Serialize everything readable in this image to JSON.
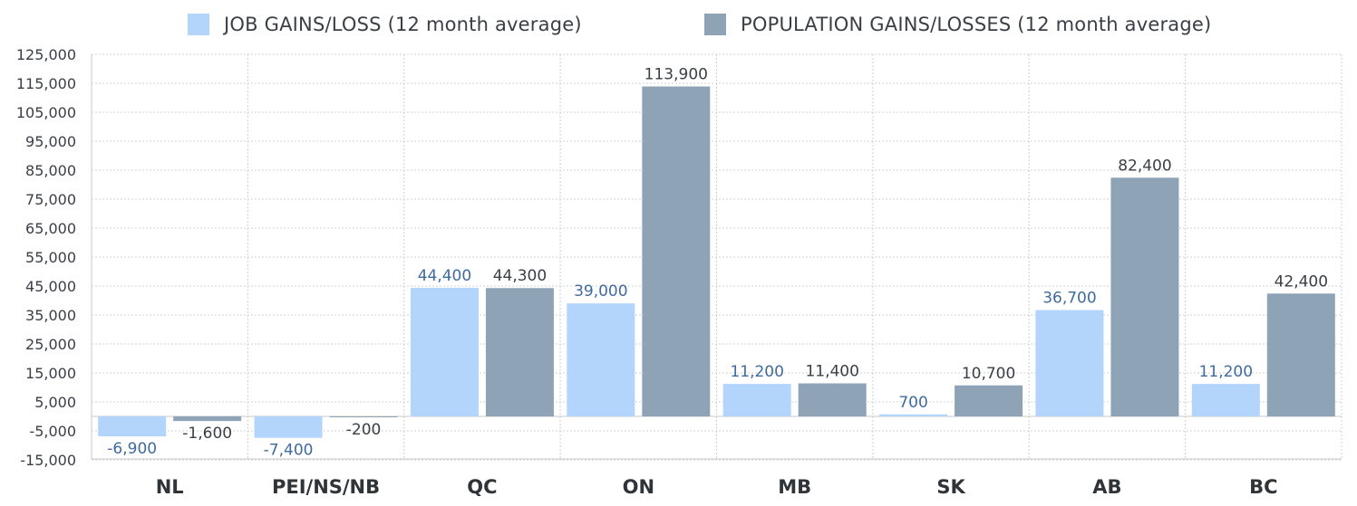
{
  "chart_data": {
    "type": "bar",
    "categories": [
      "NL",
      "PEI/NS/NB",
      "QC",
      "ON",
      "MB",
      "SK",
      "AB",
      "BC"
    ],
    "series": [
      {
        "name": "JOB GAINS/LOSS (12 month average)",
        "color": "#b3d4fb",
        "label_color": "#3f6b9e",
        "values": [
          -6900,
          -7400,
          44400,
          39000,
          11200,
          700,
          36700,
          11200
        ],
        "labels": [
          "-6,900",
          "-7,400",
          "44,400",
          "39,000",
          "11,200",
          "700",
          "36,700",
          "11,200"
        ]
      },
      {
        "name": "POPULATION GAINS/LOSSES (12 month average)",
        "color": "#8ea3b6",
        "label_color": "#3a3f45",
        "values": [
          -1600,
          -200,
          44300,
          113900,
          11400,
          10700,
          82400,
          42400
        ],
        "labels": [
          "-1,600",
          "-200",
          "44,300",
          "113,900",
          "11,400",
          "10,700",
          "82,400",
          "42,400"
        ]
      }
    ],
    "yticks": [
      125000,
      115000,
      105000,
      95000,
      85000,
      75000,
      65000,
      55000,
      45000,
      35000,
      25000,
      15000,
      5000,
      -5000,
      -15000
    ],
    "ytick_labels": [
      "125,000",
      "115,000",
      "105,000",
      "95,000",
      "85,000",
      "75,000",
      "65,000",
      "55,000",
      "45,000",
      "35,000",
      "25,000",
      "15,000",
      "5,000",
      "-5,000",
      "-15,000"
    ],
    "ylim": [
      -15000,
      125000
    ],
    "grid": true,
    "legend_position": "top-center"
  }
}
